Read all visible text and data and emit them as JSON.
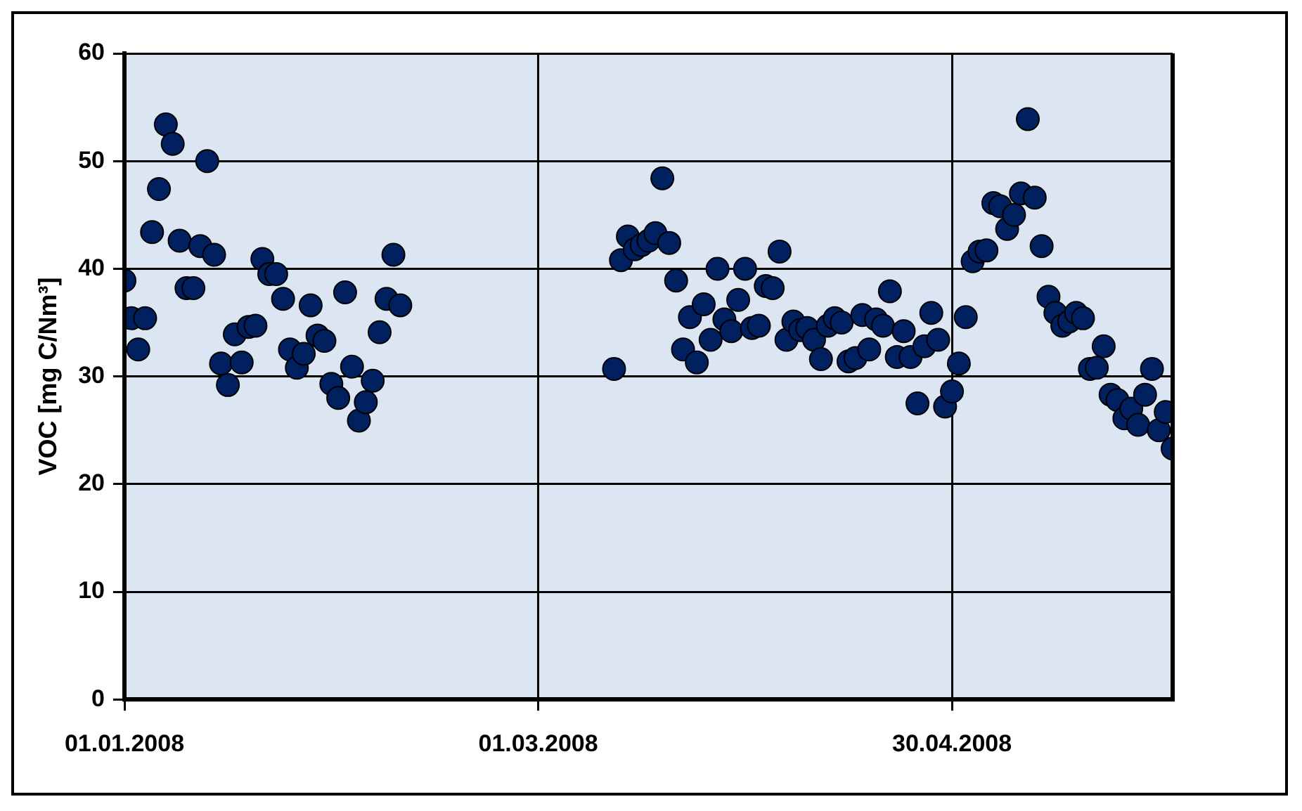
{
  "chart_data": {
    "type": "scatter",
    "ylabel": "VOC [mg C/Nm³]",
    "xlim": [
      "2008-01-01",
      "2008-06-01"
    ],
    "xticks": [
      {
        "value": "2008-01-01",
        "label": "01.01.2008"
      },
      {
        "value": "2008-03-01",
        "label": "01.03.2008"
      },
      {
        "value": "2008-04-30",
        "label": "30.04.2008"
      }
    ],
    "ylim": [
      0,
      60
    ],
    "yticks": [
      0,
      10,
      20,
      30,
      40,
      50,
      60
    ],
    "grid": true,
    "marker": "circle",
    "legend": false,
    "series": [
      {
        "color": "#002060",
        "x": [
          "2008-01-01",
          "2008-01-02",
          "2008-01-03",
          "2008-01-04",
          "2008-01-05",
          "2008-01-06",
          "2008-01-07",
          "2008-01-08",
          "2008-01-09",
          "2008-01-10",
          "2008-01-11",
          "2008-01-12",
          "2008-01-13",
          "2008-01-14",
          "2008-01-15",
          "2008-01-16",
          "2008-01-17",
          "2008-01-18",
          "2008-01-19",
          "2008-01-20",
          "2008-01-21",
          "2008-01-22",
          "2008-01-23",
          "2008-01-24",
          "2008-01-25",
          "2008-01-26",
          "2008-01-27",
          "2008-01-28",
          "2008-01-29",
          "2008-01-30",
          "2008-01-31",
          "2008-02-01",
          "2008-02-02",
          "2008-02-03",
          "2008-02-04",
          "2008-02-05",
          "2008-02-06",
          "2008-02-07",
          "2008-02-08",
          "2008-02-09",
          "2008-02-10",
          "2008-03-12",
          "2008-03-13",
          "2008-03-14",
          "2008-03-15",
          "2008-03-16",
          "2008-03-17",
          "2008-03-18",
          "2008-03-19",
          "2008-03-20",
          "2008-03-21",
          "2008-03-22",
          "2008-03-23",
          "2008-03-24",
          "2008-03-25",
          "2008-03-26",
          "2008-03-27",
          "2008-03-28",
          "2008-03-29",
          "2008-03-30",
          "2008-03-31",
          "2008-04-01",
          "2008-04-02",
          "2008-04-03",
          "2008-04-04",
          "2008-04-05",
          "2008-04-06",
          "2008-04-07",
          "2008-04-08",
          "2008-04-09",
          "2008-04-10",
          "2008-04-11",
          "2008-04-12",
          "2008-04-13",
          "2008-04-14",
          "2008-04-15",
          "2008-04-16",
          "2008-04-17",
          "2008-04-18",
          "2008-04-19",
          "2008-04-20",
          "2008-04-21",
          "2008-04-22",
          "2008-04-23",
          "2008-04-24",
          "2008-04-25",
          "2008-04-26",
          "2008-04-27",
          "2008-04-28",
          "2008-04-29",
          "2008-04-30",
          "2008-05-01",
          "2008-05-02",
          "2008-05-03",
          "2008-05-04",
          "2008-05-05",
          "2008-05-06",
          "2008-05-07",
          "2008-05-08",
          "2008-05-09",
          "2008-05-10",
          "2008-05-11",
          "2008-05-12",
          "2008-05-13",
          "2008-05-14",
          "2008-05-15",
          "2008-05-16",
          "2008-05-17",
          "2008-05-18",
          "2008-05-19",
          "2008-05-20",
          "2008-05-21",
          "2008-05-22",
          "2008-05-23",
          "2008-05-24",
          "2008-05-25",
          "2008-05-26",
          "2008-05-27",
          "2008-05-28",
          "2008-05-29",
          "2008-05-30",
          "2008-05-31",
          "2008-06-01"
        ],
        "values": [
          38.9,
          35.4,
          32.5,
          35.4,
          43.4,
          47.4,
          53.4,
          51.6,
          42.6,
          38.2,
          38.2,
          42.1,
          50.0,
          41.3,
          31.2,
          29.2,
          33.9,
          31.3,
          34.6,
          34.7,
          40.9,
          39.5,
          39.5,
          37.2,
          32.5,
          30.8,
          32.1,
          36.6,
          33.8,
          33.3,
          29.3,
          28.0,
          37.8,
          30.9,
          25.9,
          27.6,
          29.6,
          34.1,
          37.2,
          41.3,
          36.6,
          30.7,
          40.8,
          43.0,
          41.8,
          42.2,
          42.6,
          43.3,
          48.4,
          42.4,
          38.9,
          32.5,
          35.5,
          31.3,
          36.7,
          33.4,
          40.0,
          35.3,
          34.2,
          37.1,
          40.0,
          34.5,
          34.7,
          38.4,
          38.2,
          41.6,
          33.4,
          35.1,
          34.3,
          34.5,
          33.4,
          31.6,
          34.7,
          35.4,
          35.0,
          31.4,
          31.7,
          35.7,
          32.5,
          35.3,
          34.7,
          37.9,
          31.8,
          34.2,
          31.8,
          27.5,
          32.8,
          35.9,
          33.4,
          27.2,
          28.6,
          31.2,
          35.5,
          40.7,
          41.6,
          41.7,
          46.1,
          45.8,
          43.7,
          45.0,
          47.0,
          53.9,
          46.6,
          42.1,
          37.4,
          35.9,
          34.7,
          35.1,
          35.9,
          35.4,
          30.7,
          30.8,
          32.8,
          28.3,
          27.8,
          26.1,
          27.0,
          25.5,
          28.3,
          30.7,
          25.0,
          26.7,
          23.3
        ]
      }
    ]
  }
}
